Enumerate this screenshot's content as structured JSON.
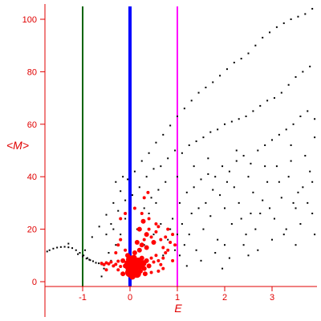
{
  "chart_data": {
    "type": "scatter",
    "title": "",
    "xlabel": "E",
    "ylabel": "<M>",
    "xlim": [
      -1.78,
      3.92
    ],
    "ylim": [
      -2,
      105
    ],
    "x_ticks": [
      -1,
      0,
      1,
      2,
      3
    ],
    "x_tick_labels": [
      "-1",
      "0",
      "1",
      "2",
      "3"
    ],
    "y_ticks": [
      0,
      20,
      40,
      60,
      80,
      100
    ],
    "y_tick_labels": [
      "0",
      "20",
      "40",
      "60",
      "80",
      "100"
    ],
    "grid": false,
    "legend": "none",
    "colors": {
      "axis": "#e00000",
      "black_points": "#000000",
      "red_points": "#ff0000",
      "line_green": "#006400",
      "line_blue": "#0000ff",
      "line_magenta": "#ff00ff"
    },
    "vertical_lines": [
      {
        "x": -1,
        "color": "#006400"
      },
      {
        "x": 0,
        "color": "#0000ff"
      },
      {
        "x": 1,
        "color": "#ff00ff"
      }
    ],
    "black_series": {
      "points": [
        [
          -1.7,
          12.0
        ],
        [
          -1.62,
          12.6
        ],
        [
          -1.54,
          13.0
        ],
        [
          -1.46,
          13.2
        ],
        [
          -1.38,
          13.3
        ],
        [
          -1.3,
          13.1
        ],
        [
          -1.22,
          12.8
        ],
        [
          -1.14,
          12.0
        ],
        [
          -1.06,
          11.0
        ],
        [
          -0.98,
          10.0
        ],
        [
          -0.9,
          9.0
        ],
        [
          -0.84,
          8.2
        ],
        [
          -0.78,
          7.8
        ],
        [
          -0.72,
          7.2
        ],
        [
          -0.66,
          7.0
        ],
        [
          -0.6,
          6.6
        ],
        [
          -1.1,
          10.5
        ],
        [
          -1.0,
          9.6
        ],
        [
          -0.92,
          8.8
        ],
        [
          -0.86,
          8.4
        ],
        [
          -1.8,
          11.0
        ],
        [
          -1.75,
          11.5
        ],
        [
          -0.95,
          12.0
        ],
        [
          -0.8,
          17.0
        ],
        [
          -0.65,
          21.0
        ],
        [
          -0.5,
          25.5
        ],
        [
          -0.35,
          30.0
        ],
        [
          -0.2,
          34.5
        ],
        [
          -0.05,
          39.0
        ],
        [
          0.1,
          42.0
        ],
        [
          0.25,
          46.0
        ],
        [
          0.4,
          49.0
        ],
        [
          0.55,
          53.0
        ],
        [
          0.7,
          56.0
        ],
        [
          0.85,
          59.5
        ],
        [
          1.0,
          63.0
        ],
        [
          1.15,
          66.0
        ],
        [
          1.3,
          69.0
        ],
        [
          1.45,
          72.0
        ],
        [
          1.6,
          74.0
        ],
        [
          1.75,
          76.0
        ],
        [
          1.9,
          78.5
        ],
        [
          2.05,
          81.0
        ],
        [
          2.2,
          83.5
        ],
        [
          2.35,
          85.0
        ],
        [
          2.5,
          87.0
        ],
        [
          2.65,
          90.0
        ],
        [
          2.8,
          93.0
        ],
        [
          2.95,
          95.0
        ],
        [
          3.1,
          97.0
        ],
        [
          3.25,
          98.5
        ],
        [
          3.4,
          100.0
        ],
        [
          3.55,
          101.0
        ],
        [
          3.7,
          102.0
        ],
        [
          3.85,
          104.0
        ],
        [
          -0.3,
          38.0
        ],
        [
          -0.15,
          40.0
        ],
        [
          0.2,
          36.0
        ],
        [
          0.35,
          40.0
        ],
        [
          0.5,
          43.0
        ],
        [
          0.65,
          44.0
        ],
        [
          0.8,
          47.0
        ],
        [
          0.95,
          50.0
        ],
        [
          1.1,
          49.0
        ],
        [
          1.25,
          52.0
        ],
        [
          1.4,
          53.5
        ],
        [
          1.55,
          55.0
        ],
        [
          1.7,
          57.0
        ],
        [
          1.85,
          58.0
        ],
        [
          2.0,
          60.0
        ],
        [
          2.15,
          61.0
        ],
        [
          2.3,
          62.0
        ],
        [
          2.45,
          63.0
        ],
        [
          2.6,
          65.0
        ],
        [
          2.75,
          67.0
        ],
        [
          2.9,
          69.0
        ],
        [
          3.05,
          70.0
        ],
        [
          3.2,
          72.0
        ],
        [
          3.35,
          75.0
        ],
        [
          3.5,
          78.0
        ],
        [
          3.65,
          80.0
        ],
        [
          3.8,
          82.0
        ],
        [
          -1.3,
          14.5
        ],
        [
          -0.5,
          18.0
        ],
        [
          -0.4,
          22.0
        ],
        [
          -0.25,
          27.0
        ],
        [
          -0.1,
          31.0
        ],
        [
          0.05,
          33.0
        ],
        [
          0.3,
          28.0
        ],
        [
          0.45,
          32.0
        ],
        [
          0.6,
          35.0
        ],
        [
          0.75,
          38.0
        ],
        [
          0.9,
          24.0
        ],
        [
          1.05,
          30.0
        ],
        [
          1.2,
          34.0
        ],
        [
          1.35,
          36.0
        ],
        [
          1.5,
          39.0
        ],
        [
          1.65,
          41.0
        ],
        [
          1.8,
          40.0
        ],
        [
          1.95,
          44.0
        ],
        [
          2.1,
          42.0
        ],
        [
          2.25,
          46.0
        ],
        [
          2.4,
          48.0
        ],
        [
          2.55,
          45.0
        ],
        [
          2.7,
          50.0
        ],
        [
          2.85,
          52.0
        ],
        [
          3.0,
          54.0
        ],
        [
          3.15,
          56.0
        ],
        [
          3.3,
          58.0
        ],
        [
          3.45,
          60.0
        ],
        [
          3.6,
          63.0
        ],
        [
          3.75,
          65.0
        ],
        [
          3.9,
          62.0
        ],
        [
          1.05,
          10.0
        ],
        [
          1.15,
          14.0
        ],
        [
          1.25,
          18.0
        ],
        [
          1.4,
          12.0
        ],
        [
          1.55,
          20.0
        ],
        [
          1.7,
          25.0
        ],
        [
          1.85,
          16.0
        ],
        [
          2.0,
          28.0
        ],
        [
          2.15,
          22.0
        ],
        [
          2.3,
          30.0
        ],
        [
          2.45,
          18.0
        ],
        [
          2.6,
          34.0
        ],
        [
          2.75,
          26.0
        ],
        [
          2.9,
          38.0
        ],
        [
          3.05,
          24.0
        ],
        [
          3.2,
          32.0
        ],
        [
          3.35,
          40.0
        ],
        [
          3.5,
          28.0
        ],
        [
          3.65,
          36.0
        ],
        [
          3.8,
          42.0
        ],
        [
          1.1,
          22.0
        ],
        [
          1.3,
          26.0
        ],
        [
          1.6,
          30.0
        ],
        [
          1.9,
          33.0
        ],
        [
          2.2,
          36.0
        ],
        [
          2.5,
          40.0
        ],
        [
          2.8,
          31.0
        ],
        [
          3.1,
          44.0
        ],
        [
          3.4,
          46.0
        ],
        [
          3.7,
          48.0
        ],
        [
          1.2,
          6.0
        ],
        [
          1.5,
          8.0
        ],
        [
          1.8,
          11.0
        ],
        [
          2.1,
          9.0
        ],
        [
          2.4,
          14.0
        ],
        [
          2.7,
          12.0
        ],
        [
          3.0,
          16.0
        ],
        [
          3.3,
          20.0
        ],
        [
          3.6,
          22.0
        ],
        [
          3.85,
          26.0
        ],
        [
          1.95,
          5.0
        ],
        [
          2.35,
          24.0
        ],
        [
          2.65,
          20.0
        ],
        [
          2.95,
          28.0
        ],
        [
          3.25,
          18.0
        ],
        [
          3.55,
          34.0
        ],
        [
          3.85,
          38.0
        ],
        [
          1.45,
          28.0
        ],
        [
          1.75,
          35.0
        ],
        [
          2.05,
          38.0
        ],
        [
          2.55,
          26.0
        ],
        [
          3.15,
          38.0
        ],
        [
          3.45,
          30.0
        ],
        [
          3.75,
          30.0
        ],
        [
          1.0,
          18.0
        ],
        [
          1.0,
          40.0
        ],
        [
          1.35,
          44.0
        ],
        [
          1.65,
          47.0
        ],
        [
          2.25,
          50.0
        ],
        [
          2.85,
          44.0
        ],
        [
          3.4,
          52.0
        ],
        [
          3.9,
          55.0
        ],
        [
          2.0,
          14.0
        ],
        [
          2.5,
          10.0
        ],
        [
          3.5,
          14.0
        ],
        [
          3.9,
          18.0
        ],
        [
          -0.4,
          8.0
        ],
        [
          -0.55,
          5.0
        ],
        [
          -0.45,
          11.0
        ],
        [
          -0.3,
          14.0
        ],
        [
          -0.2,
          18.0
        ],
        [
          -0.1,
          24.0
        ],
        [
          0.15,
          20.0
        ],
        [
          0.5,
          18.0
        ],
        [
          0.65,
          22.0
        ],
        [
          0.8,
          16.0
        ],
        [
          0.95,
          12.0
        ],
        [
          0.4,
          26.0
        ],
        [
          0.55,
          30.0
        ],
        [
          -0.6,
          2.0
        ],
        [
          0.7,
          10.0
        ],
        [
          0.85,
          20.0
        ],
        [
          0.3,
          14.0
        ],
        [
          -0.35,
          20.0
        ]
      ]
    },
    "red_series": {
      "points": [
        [
          -0.6,
          7.0,
          2
        ],
        [
          -0.55,
          6.5,
          2
        ],
        [
          -0.5,
          7.2,
          2
        ],
        [
          -0.45,
          6.8,
          2
        ],
        [
          -0.4,
          7.5,
          2
        ],
        [
          -0.35,
          6.0,
          2
        ],
        [
          -0.3,
          6.6,
          2
        ],
        [
          -0.25,
          7.8,
          2
        ],
        [
          -0.2,
          5.8,
          2
        ],
        [
          -0.15,
          8.0,
          3
        ],
        [
          -0.1,
          6.0,
          3
        ],
        [
          -0.05,
          7.0,
          4
        ],
        [
          -0.02,
          5.5,
          5
        ],
        [
          0.0,
          8.5,
          5
        ],
        [
          0.03,
          6.5,
          6
        ],
        [
          0.05,
          4.5,
          4
        ],
        [
          0.08,
          9.0,
          4
        ],
        [
          0.1,
          7.0,
          5
        ],
        [
          0.12,
          5.0,
          4
        ],
        [
          0.15,
          3.0,
          5
        ],
        [
          0.18,
          8.0,
          4
        ],
        [
          0.2,
          6.0,
          5
        ],
        [
          0.22,
          4.0,
          3
        ],
        [
          0.25,
          9.0,
          3
        ],
        [
          0.28,
          7.0,
          4
        ],
        [
          0.3,
          5.0,
          3
        ],
        [
          0.35,
          8.0,
          3
        ],
        [
          0.4,
          6.0,
          3
        ],
        [
          0.45,
          9.0,
          2
        ],
        [
          0.5,
          7.5,
          2
        ],
        [
          0.55,
          10.0,
          2
        ],
        [
          0.6,
          8.0,
          2
        ],
        [
          0.65,
          6.5,
          2
        ],
        [
          0.7,
          9.0,
          2
        ],
        [
          0.75,
          11.0,
          2
        ],
        [
          -0.05,
          10.0,
          3
        ],
        [
          0.1,
          11.0,
          3
        ],
        [
          0.2,
          12.0,
          3
        ],
        [
          0.25,
          14.0,
          3
        ],
        [
          0.3,
          16.0,
          2
        ],
        [
          0.35,
          18.0,
          3
        ],
        [
          0.4,
          20.0,
          2
        ],
        [
          0.45,
          17.0,
          2
        ],
        [
          0.5,
          15.0,
          3
        ],
        [
          0.55,
          19.0,
          2
        ],
        [
          0.6,
          21.0,
          2
        ],
        [
          0.65,
          16.0,
          2
        ],
        [
          0.7,
          13.0,
          2
        ],
        [
          0.75,
          17.0,
          2
        ],
        [
          0.8,
          20.0,
          2
        ],
        [
          0.85,
          15.0,
          2
        ],
        [
          0.9,
          18.0,
          2
        ],
        [
          0.2,
          20.0,
          3
        ],
        [
          0.28,
          23.0,
          3
        ],
        [
          0.25,
          26.0,
          2
        ],
        [
          0.4,
          24.0,
          2
        ],
        [
          0.55,
          22.0,
          2
        ],
        [
          0.35,
          13.0,
          3
        ],
        [
          0.15,
          15.0,
          3
        ],
        [
          -0.25,
          14.0,
          2
        ],
        [
          -0.2,
          16.0,
          2
        ],
        [
          -0.1,
          12.0,
          2
        ],
        [
          -0.3,
          11.0,
          2
        ],
        [
          0.45,
          3.5,
          2
        ],
        [
          0.6,
          4.0,
          2
        ],
        [
          0.7,
          5.0,
          2
        ],
        [
          -0.15,
          3.0,
          3
        ],
        [
          0.05,
          2.0,
          4
        ],
        [
          0.32,
          3.0,
          3
        ],
        [
          -0.25,
          4.5,
          2
        ],
        [
          0.38,
          34.0,
          2
        ],
        [
          0.3,
          32.0,
          2
        ],
        [
          -0.1,
          26.0,
          2
        ],
        [
          0.1,
          28.0,
          2
        ],
        [
          0.95,
          14.0,
          2
        ],
        [
          0.9,
          8.0,
          2
        ],
        [
          -0.2,
          24.0,
          2
        ],
        [
          -0.5,
          4.5,
          2
        ],
        [
          0.8,
          12.0,
          2
        ],
        [
          0.0,
          3.5,
          6
        ]
      ]
    }
  }
}
